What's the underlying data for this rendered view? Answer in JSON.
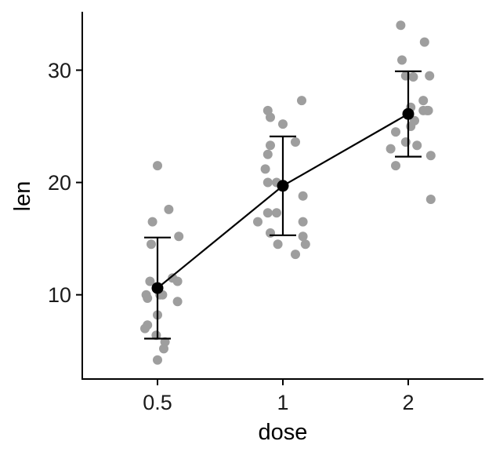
{
  "chart_data": {
    "type": "scatter",
    "title": "",
    "xlabel": "dose",
    "ylabel": "len",
    "categories": [
      "0.5",
      "1",
      "2"
    ],
    "ylim": [
      2.5,
      35.2
    ],
    "yticks": [
      10,
      20,
      30
    ],
    "grid": false,
    "legend": "none",
    "colors": {
      "points": "#9e9e9e",
      "summary": "#000000",
      "axis": "#000000"
    },
    "points": [
      {
        "x": "0.5",
        "jitter": -0.1,
        "y": 7.0
      },
      {
        "x": "0.5",
        "jitter": -0.08,
        "y": 7.3
      },
      {
        "x": "0.5",
        "jitter": -0.09,
        "y": 10.0
      },
      {
        "x": "0.5",
        "jitter": -0.08,
        "y": 9.7
      },
      {
        "x": "0.5",
        "jitter": -0.06,
        "y": 11.2
      },
      {
        "x": "0.5",
        "jitter": -0.05,
        "y": 14.5
      },
      {
        "x": "0.5",
        "jitter": -0.04,
        "y": 16.5
      },
      {
        "x": "0.5",
        "jitter": -0.01,
        "y": 6.4
      },
      {
        "x": "0.5",
        "jitter": 0.0,
        "y": 21.5
      },
      {
        "x": "0.5",
        "jitter": 0.0,
        "y": 8.2
      },
      {
        "x": "0.5",
        "jitter": 0.0,
        "y": 4.2
      },
      {
        "x": "0.5",
        "jitter": 0.02,
        "y": 10.0
      },
      {
        "x": "0.5",
        "jitter": 0.05,
        "y": 5.2
      },
      {
        "x": "0.5",
        "jitter": 0.06,
        "y": 5.8
      },
      {
        "x": "0.5",
        "jitter": 0.09,
        "y": 17.6
      },
      {
        "x": "0.5",
        "jitter": 0.12,
        "y": 11.5
      },
      {
        "x": "0.5",
        "jitter": 0.16,
        "y": 11.2
      },
      {
        "x": "0.5",
        "jitter": 0.17,
        "y": 15.2
      },
      {
        "x": "0.5",
        "jitter": 0.16,
        "y": 9.4
      },
      {
        "x": "0.5",
        "jitter": 0.04,
        "y": 10.0
      },
      {
        "x": "1",
        "jitter": -0.2,
        "y": 16.5
      },
      {
        "x": "1",
        "jitter": -0.14,
        "y": 21.2
      },
      {
        "x": "1",
        "jitter": -0.12,
        "y": 22.5
      },
      {
        "x": "1",
        "jitter": -0.12,
        "y": 20.0
      },
      {
        "x": "1",
        "jitter": -0.12,
        "y": 17.3
      },
      {
        "x": "1",
        "jitter": -0.1,
        "y": 15.5
      },
      {
        "x": "1",
        "jitter": -0.12,
        "y": 26.4
      },
      {
        "x": "1",
        "jitter": -0.1,
        "y": 25.8
      },
      {
        "x": "1",
        "jitter": -0.1,
        "y": 23.3
      },
      {
        "x": "1",
        "jitter": -0.05,
        "y": 17.3
      },
      {
        "x": "1",
        "jitter": -0.04,
        "y": 14.5
      },
      {
        "x": "1",
        "jitter": 0.0,
        "y": 25.2
      },
      {
        "x": "1",
        "jitter": 0.1,
        "y": 23.6
      },
      {
        "x": "1",
        "jitter": 0.1,
        "y": 13.6
      },
      {
        "x": "1",
        "jitter": 0.15,
        "y": 27.3
      },
      {
        "x": "1",
        "jitter": 0.16,
        "y": 18.8
      },
      {
        "x": "1",
        "jitter": 0.16,
        "y": 16.5
      },
      {
        "x": "1",
        "jitter": 0.16,
        "y": 15.2
      },
      {
        "x": "1",
        "jitter": 0.18,
        "y": 14.5
      },
      {
        "x": "1",
        "jitter": -0.05,
        "y": 20.0
      },
      {
        "x": "2",
        "jitter": -0.14,
        "y": 23.0
      },
      {
        "x": "2",
        "jitter": -0.1,
        "y": 24.5
      },
      {
        "x": "2",
        "jitter": -0.1,
        "y": 21.5
      },
      {
        "x": "2",
        "jitter": -0.06,
        "y": 34.0
      },
      {
        "x": "2",
        "jitter": -0.05,
        "y": 30.9
      },
      {
        "x": "2",
        "jitter": -0.02,
        "y": 29.5
      },
      {
        "x": "2",
        "jitter": -0.02,
        "y": 23.6
      },
      {
        "x": "2",
        "jitter": 0.02,
        "y": 26.7
      },
      {
        "x": "2",
        "jitter": 0.02,
        "y": 25.0
      },
      {
        "x": "2",
        "jitter": 0.04,
        "y": 29.4
      },
      {
        "x": "2",
        "jitter": 0.05,
        "y": 25.5
      },
      {
        "x": "2",
        "jitter": 0.07,
        "y": 23.3
      },
      {
        "x": "2",
        "jitter": 0.12,
        "y": 27.3
      },
      {
        "x": "2",
        "jitter": 0.12,
        "y": 26.4
      },
      {
        "x": "2",
        "jitter": 0.13,
        "y": 32.5
      },
      {
        "x": "2",
        "jitter": 0.16,
        "y": 26.4
      },
      {
        "x": "2",
        "jitter": 0.17,
        "y": 29.5
      },
      {
        "x": "2",
        "jitter": 0.18,
        "y": 22.4
      },
      {
        "x": "2",
        "jitter": 0.18,
        "y": 18.5
      },
      {
        "x": "2",
        "jitter": 0.15,
        "y": 26.4
      }
    ],
    "summary": {
      "line": true,
      "means": [
        10.6,
        19.7,
        26.1
      ],
      "lower": [
        6.1,
        15.3,
        22.3
      ],
      "upper": [
        15.1,
        24.1,
        29.9
      ]
    }
  }
}
